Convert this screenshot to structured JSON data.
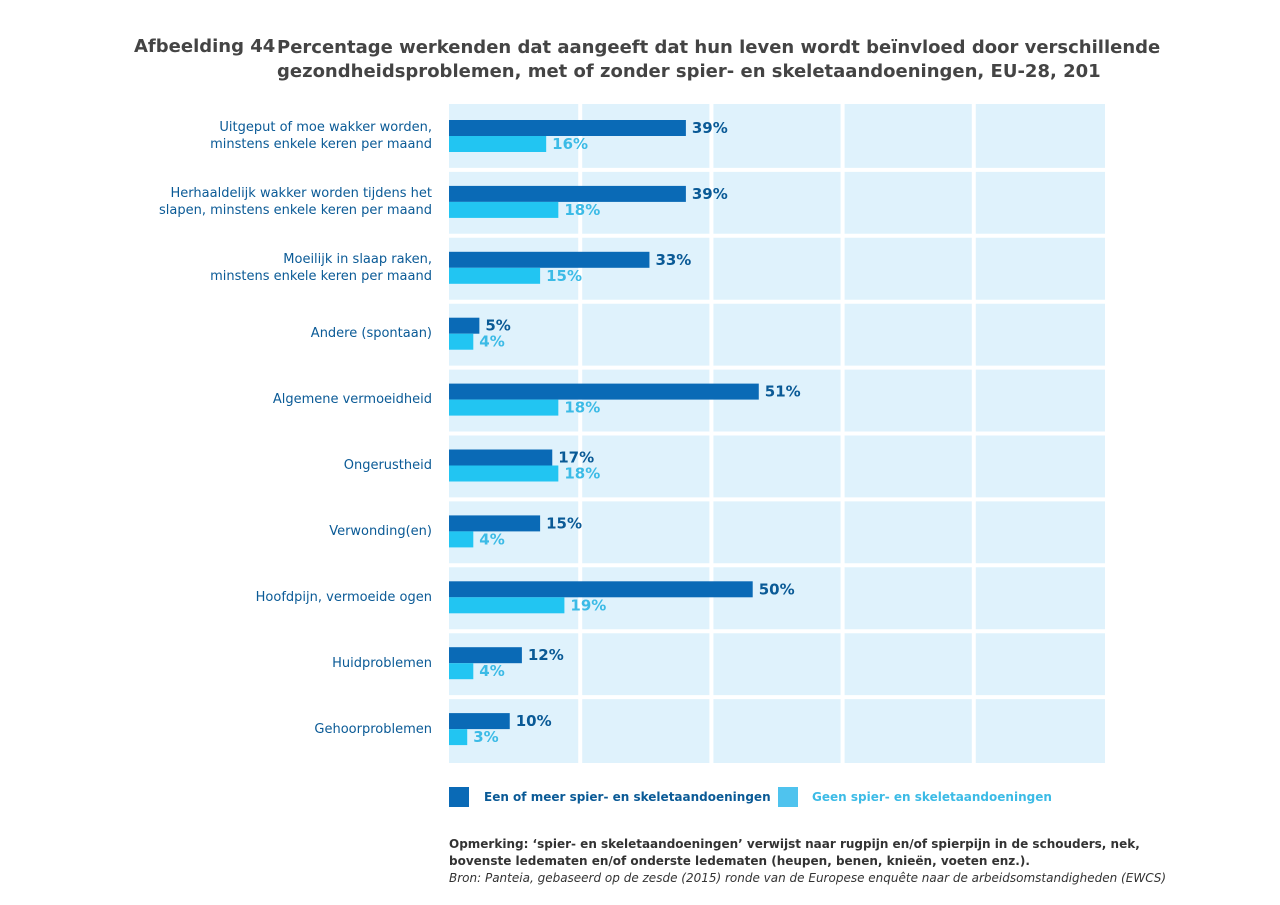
{
  "figure": {
    "number": "Afbeelding 44",
    "title_lines": [
      "Percentage werkenden dat aangeeft dat hun leven wordt beïnvloed door verschillende",
      "gezondheidsproblemen, met of zonder spier- en skeletaandoeningen, EU-28, 201"
    ]
  },
  "chart_data": {
    "type": "bar",
    "orientation": "horizontal",
    "categories": [
      "Uitgeput of moe wakker worden, minstens enkele keren per maand",
      "Herhaaldelijk wakker worden tijdens het slapen, minstens enkele keren per maand",
      "Moeilijk in slaap raken, minstens enkele keren per maand",
      "Andere (spontaan)",
      "Algemene vermoeidheid",
      "Ongerustheid",
      "Verwonding(en)",
      "Hoofdpijn, vermoeide ogen",
      "Huidproblemen",
      "Gehoorproblemen"
    ],
    "category_label_lines": [
      [
        "Uitgeput of moe wakker worden,",
        "minstens enkele keren per maand"
      ],
      [
        "Herhaaldelijk wakker worden tijdens het",
        "slapen, minstens enkele keren per maand"
      ],
      [
        "Moeilijk in slaap raken,",
        "minstens enkele keren per maand"
      ],
      [
        "Andere (spontaan)"
      ],
      [
        "Algemene vermoeidheid"
      ],
      [
        "Ongerustheid"
      ],
      [
        "Verwonding(en)"
      ],
      [
        "Hoofdpijn, vermoeide ogen"
      ],
      [
        "Huidproblemen"
      ],
      [
        "Gehoorproblemen"
      ]
    ],
    "series": [
      {
        "name": "Een of meer spier- en skeletaandoeningen",
        "color": "#0a6ab6",
        "label_color": "#0a5a96",
        "values": [
          39,
          39,
          33,
          5,
          51,
          17,
          15,
          50,
          12,
          10
        ]
      },
      {
        "name": "Geen spier- en skeletaandoeningen",
        "color": "#22c5f2",
        "label_color": "#3cbbe6",
        "values": [
          16,
          18,
          15,
          4,
          18,
          18,
          4,
          19,
          4,
          3
        ]
      }
    ],
    "value_suffix": "%",
    "xlim": [
      0,
      108
    ],
    "grid_step": 21.6,
    "grid": true,
    "panel_color": "#dff2fc",
    "legend_position": "bottom"
  },
  "note": {
    "remark": "Opmerking: ‘spier- en skeletaandoeningen’ verwijst naar rugpijn en/of spierpijn in de schouders, nek, bovenste ledematen en/of onderste ledematen (heupen, benen, knieën, voeten enz.).",
    "source": "Bron: Panteia, gebaseerd op de zesde (2015) ronde van de Europese enquête naar de arbeidsomstandigheden (EWCS)"
  }
}
